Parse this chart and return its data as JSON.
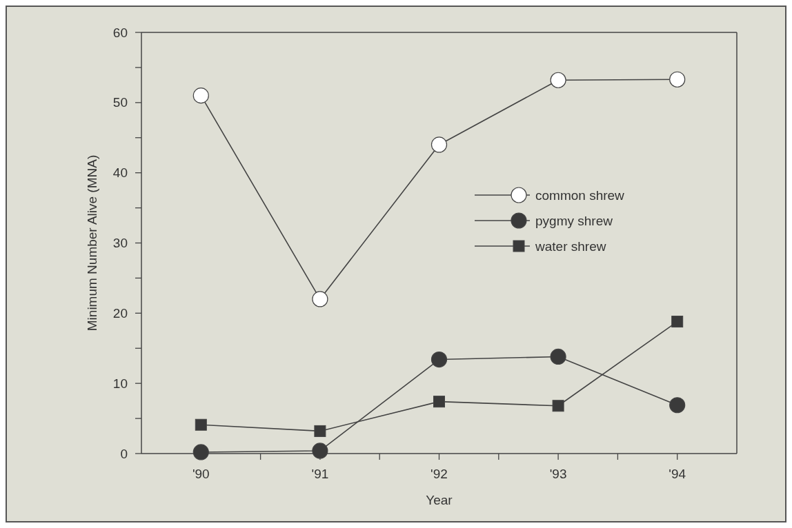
{
  "chart_data": {
    "type": "line",
    "xlabel": "Year",
    "ylabel": "Minimum Number Alive (MNA)",
    "categories": [
      "'90",
      "'91",
      "'92",
      "'93",
      "'94"
    ],
    "series": [
      {
        "name": "common shrew",
        "color": "#ffffff",
        "marker": "circle",
        "values": [
          51,
          22,
          44,
          53.2,
          53.3
        ]
      },
      {
        "name": "pygmy shrew",
        "color": "#3a3a3a",
        "marker": "circle",
        "values": [
          0.2,
          0.4,
          13.4,
          13.8,
          6.9
        ]
      },
      {
        "name": "water shrew",
        "color": "#3a3a3a",
        "marker": "square",
        "values": [
          4.1,
          3.2,
          7.4,
          6.8,
          18.8
        ]
      }
    ],
    "ylim": [
      0,
      60
    ],
    "yticks": [
      0,
      {
        "value": 5,
        "label": null
      },
      10,
      {
        "value": 15,
        "label": null
      },
      20,
      {
        "value": 25,
        "label": null
      },
      30,
      {
        "value": 35,
        "label": null
      },
      40,
      {
        "value": 45,
        "label": null
      },
      50,
      {
        "value": 55,
        "label": null
      },
      60
    ],
    "legend": "right",
    "grid": false
  }
}
